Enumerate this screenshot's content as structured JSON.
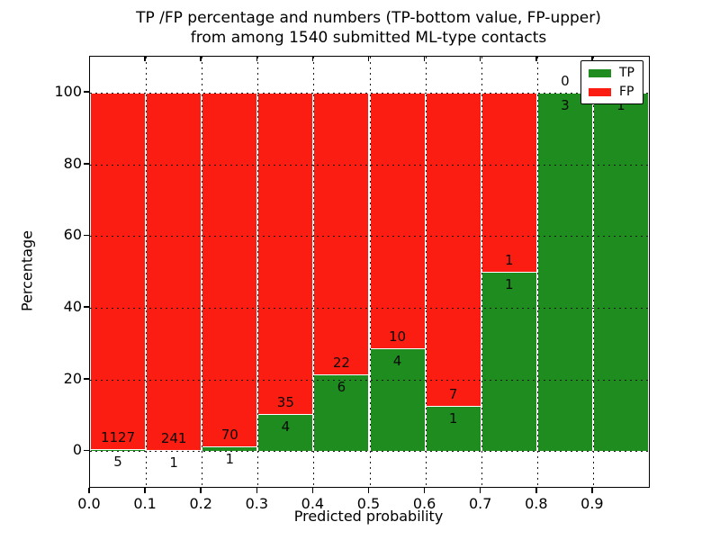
{
  "chart_data": {
    "type": "bar",
    "stacked": true,
    "orientation": "vertical",
    "title_lines": [
      "TP /FP percentage and numbers (TP-bottom value, FP-upper)",
      "from among 1540 submitted ML-type contacts"
    ],
    "xlabel": "Predicted probability",
    "ylabel": "Percentage",
    "xlim": [
      0.0,
      1.0
    ],
    "ylim": [
      -10,
      110
    ],
    "grid": "dotted",
    "x_ticks": [
      "0.0",
      "0.1",
      "0.2",
      "0.3",
      "0.4",
      "0.5",
      "0.6",
      "0.7",
      "0.8",
      "0.9"
    ],
    "y_ticks": [
      0,
      20,
      40,
      60,
      80,
      100
    ],
    "bin_width": 0.1,
    "bins": [
      {
        "x_start": 0.0,
        "x_end": 0.1,
        "tp": 5,
        "fp": 1127
      },
      {
        "x_start": 0.1,
        "x_end": 0.2,
        "tp": 1,
        "fp": 241
      },
      {
        "x_start": 0.2,
        "x_end": 0.3,
        "tp": 1,
        "fp": 70
      },
      {
        "x_start": 0.3,
        "x_end": 0.4,
        "tp": 4,
        "fp": 35
      },
      {
        "x_start": 0.4,
        "x_end": 0.5,
        "tp": 6,
        "fp": 22
      },
      {
        "x_start": 0.5,
        "x_end": 0.6,
        "tp": 4,
        "fp": 10
      },
      {
        "x_start": 0.6,
        "x_end": 0.7,
        "tp": 1,
        "fp": 7
      },
      {
        "x_start": 0.7,
        "x_end": 0.8,
        "tp": 1,
        "fp": 1
      },
      {
        "x_start": 0.8,
        "x_end": 0.9,
        "tp": 3,
        "fp": 0
      },
      {
        "x_start": 0.9,
        "x_end": 1.0,
        "tp": 1,
        "fp": 0
      }
    ],
    "series": [
      {
        "name": "TP",
        "color": "#1e8c1e",
        "position": "bottom"
      },
      {
        "name": "FP",
        "color": "#fc1d12",
        "position": "top"
      }
    ],
    "legend": {
      "location": "upper-right",
      "entries": [
        {
          "label": "TP",
          "color": "#1e8c1e"
        },
        {
          "label": "FP",
          "color": "#fc1d12"
        }
      ]
    },
    "value_labels_note": "FP count printed just above TP/FP boundary, TP count just below it"
  }
}
